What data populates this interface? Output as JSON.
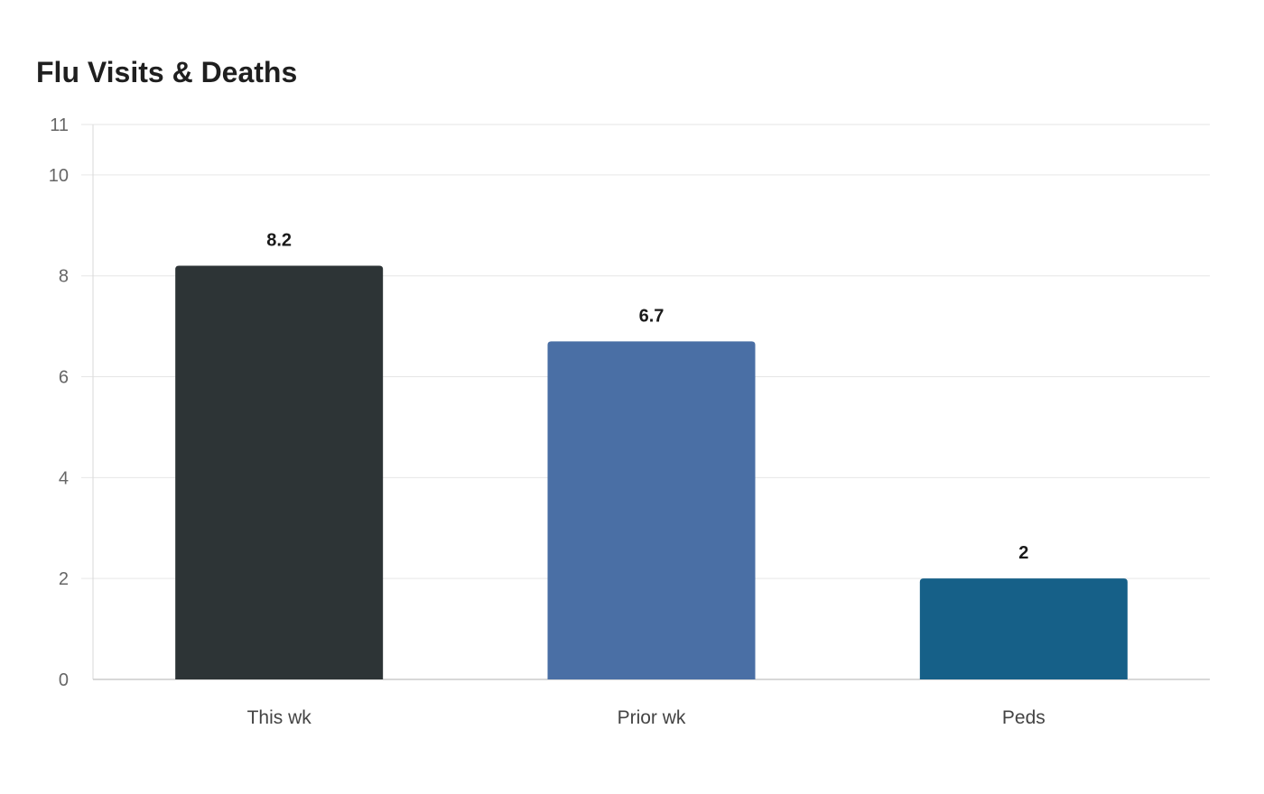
{
  "chart_data": {
    "type": "bar",
    "title": "Flu Visits & Deaths",
    "xlabel": "",
    "ylabel": "",
    "categories": [
      "This wk",
      "Prior wk",
      "Peds"
    ],
    "values": [
      8.2,
      6.7,
      2
    ],
    "value_labels": [
      "8.2",
      "6.7",
      "2"
    ],
    "colors": [
      "#2d3436",
      "#4a6fa5",
      "#166088"
    ],
    "ylim": [
      0,
      11
    ],
    "yticks": [
      0,
      2,
      4,
      6,
      8,
      10,
      11
    ],
    "grid": true,
    "legend": "none"
  }
}
